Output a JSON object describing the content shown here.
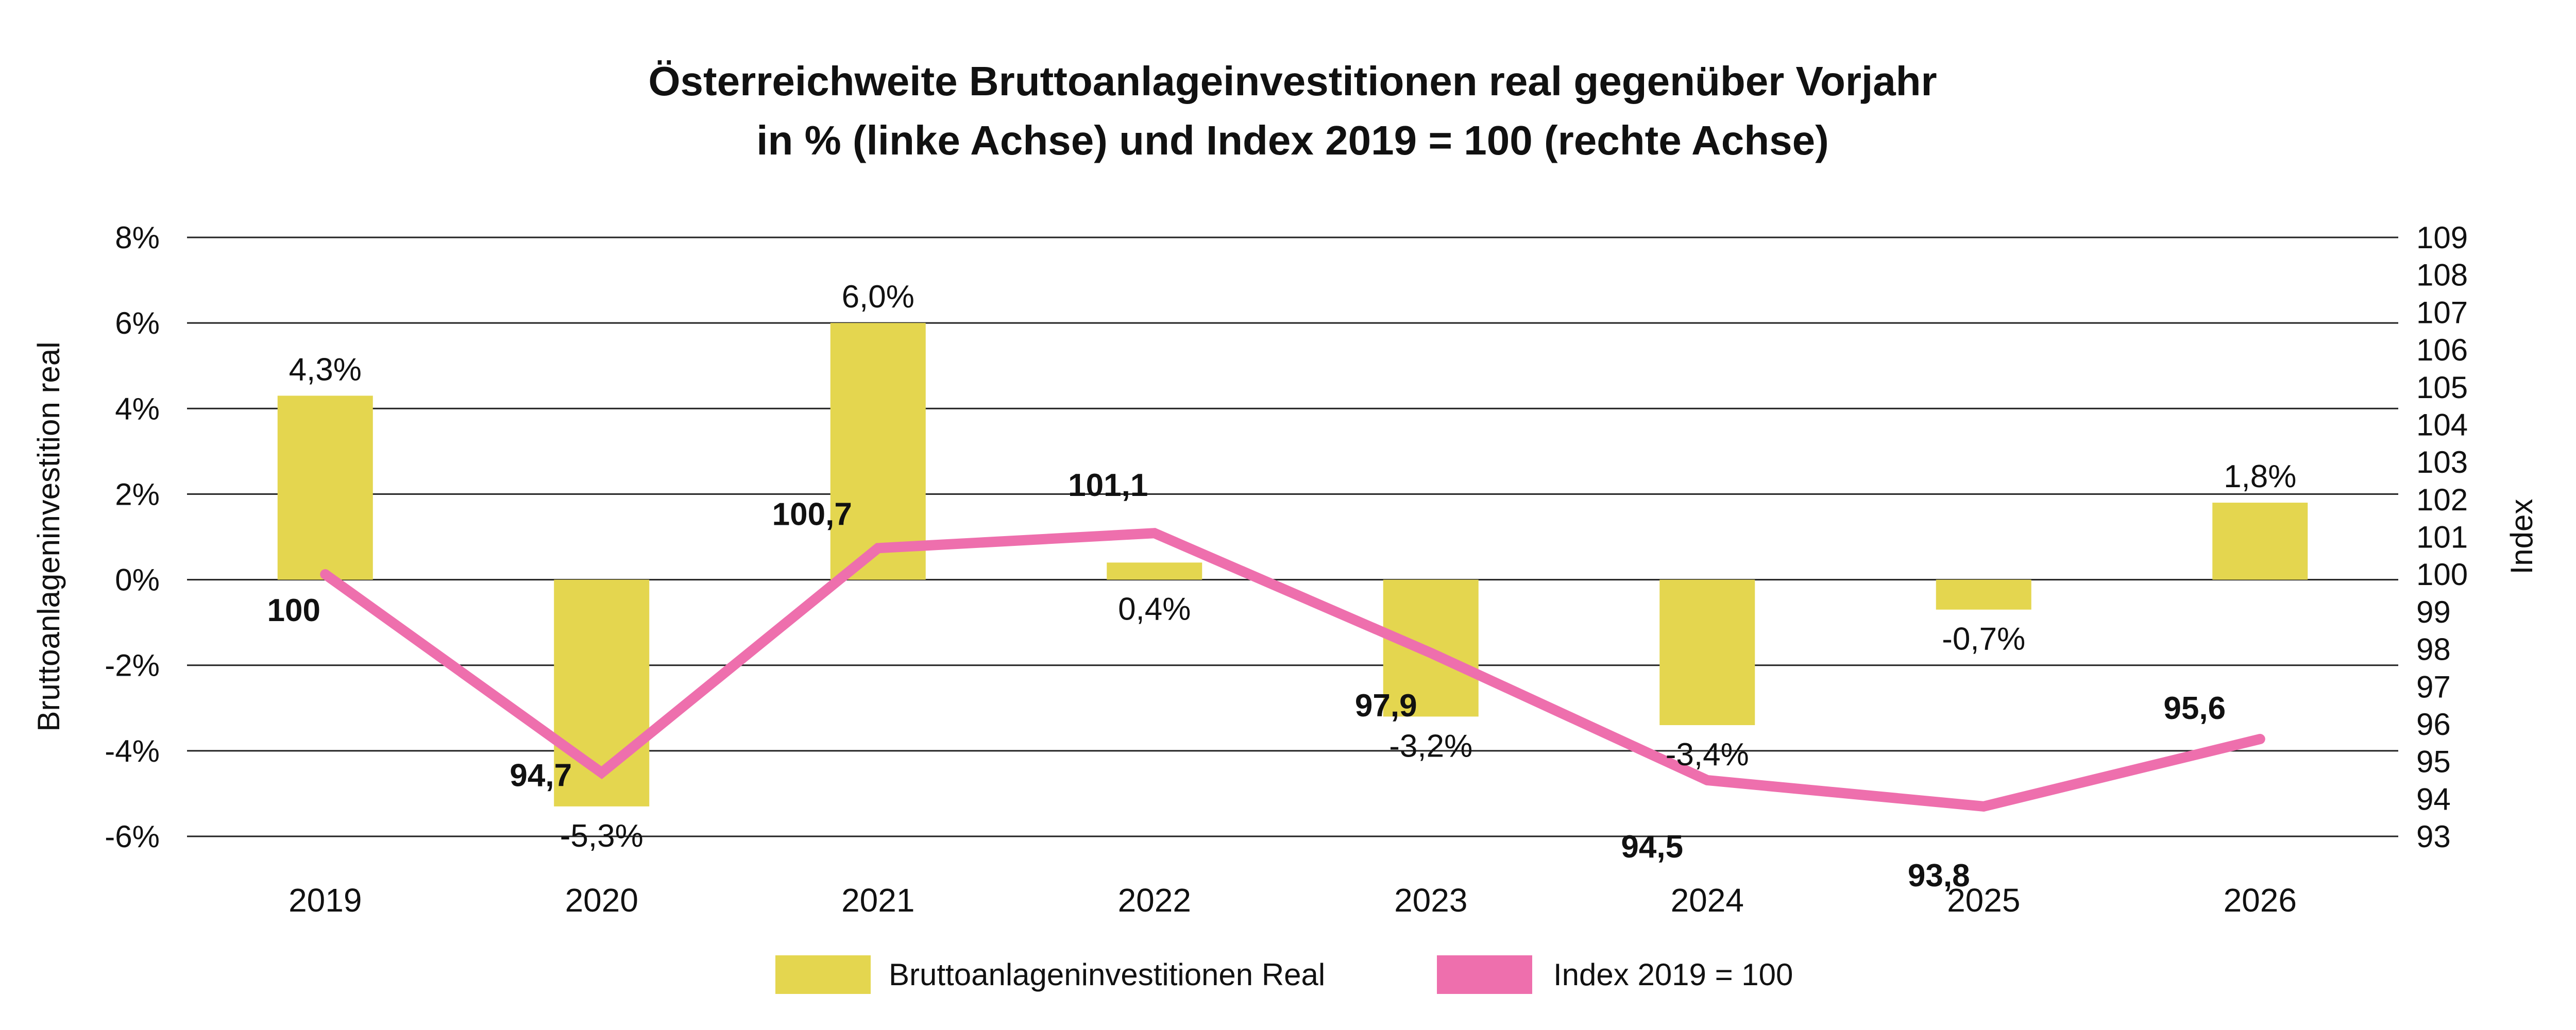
{
  "title": {
    "line1": "Österreichweite Bruttoanlageinvestitionen real gegenüber Vorjahr",
    "line2": "in % (linke Achse) und Index 2019 = 100 (rechte Achse)"
  },
  "chart_data": {
    "type": "bar",
    "subtype": "dual-axis bar + line combo",
    "categories": [
      "2019",
      "2020",
      "2021",
      "2022",
      "2023",
      "2024",
      "2025",
      "2026"
    ],
    "series": [
      {
        "name": "Bruttoanlageninvestitionen Real",
        "chart_type": "bar",
        "axis": "left",
        "values": [
          4.3,
          -5.3,
          6.0,
          0.4,
          -3.2,
          -3.4,
          -0.7,
          1.8
        ],
        "labels": [
          "4,3%",
          "-5,3%",
          "6,0%",
          "0,4%",
          "-3,2%",
          "-3,4%",
          "-0,7%",
          "1,8%"
        ],
        "label_placement": [
          "above",
          "below",
          "above",
          "below",
          "below",
          "below",
          "below",
          "above"
        ],
        "color": "#E4D64F"
      },
      {
        "name": "Index 2019 = 100",
        "chart_type": "line",
        "axis": "right",
        "values": [
          100,
          94.7,
          100.7,
          101.1,
          97.9,
          94.5,
          93.8,
          95.6
        ],
        "labels": [
          "100",
          "94,7",
          "100,7",
          "101,1",
          "97,9",
          "94,5",
          "93,8",
          "95,6"
        ],
        "label_offsets": [
          [
            -61,
            70
          ],
          [
            -118,
            5
          ],
          [
            -128,
            -66
          ],
          [
            -90,
            -93
          ],
          [
            -87,
            102
          ],
          [
            -107,
            129
          ],
          [
            -87,
            134
          ],
          [
            -127,
            -60
          ]
        ],
        "color": "#EE6FAD"
      }
    ],
    "left_axis": {
      "title": "Bruttoanlageninvestition real",
      "ticks": [
        "8%",
        "6%",
        "4%",
        "2%",
        "0%",
        "-2%",
        "-4%",
        "-6%"
      ],
      "max": 8,
      "min": -6
    },
    "right_axis": {
      "title": "Index",
      "ticks": [
        "109",
        "108",
        "107",
        "106",
        "105",
        "104",
        "103",
        "102",
        "101",
        "100",
        "99",
        "98",
        "97",
        "96",
        "95",
        "94",
        "93"
      ],
      "max": 109,
      "min": 93
    },
    "grid": true,
    "legend_position": "bottom"
  },
  "legend": {
    "items": [
      {
        "label": "Bruttoanlageninvestitionen Real",
        "color": "#E4D64F"
      },
      {
        "label": "Index 2019 = 100",
        "color": "#EE6FAD"
      }
    ]
  },
  "colors": {
    "bar": "#E4D64F",
    "line": "#EE6FAD",
    "text": "#111111",
    "grid": "#222222"
  }
}
